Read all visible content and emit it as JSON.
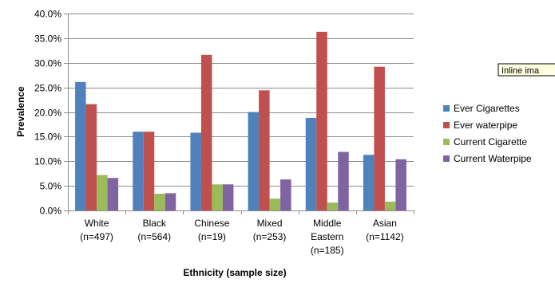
{
  "chart_data": {
    "type": "bar",
    "categories": [
      [
        "White",
        "(n=497)"
      ],
      [
        "Black",
        "(n=564)"
      ],
      [
        "Chinese",
        "(n=19)"
      ],
      [
        "Mixed",
        "(n=253)"
      ],
      [
        "Middle",
        "Eastern",
        "(n=185)"
      ],
      [
        "Asian",
        "(n=1142)"
      ]
    ],
    "series": [
      {
        "name": "Ever Cigarettes",
        "color": "#4f81bd",
        "values": [
          26.1,
          16.0,
          15.8,
          20.0,
          18.8,
          11.3
        ]
      },
      {
        "name": "Ever waterpipe",
        "color": "#c0504d",
        "values": [
          21.6,
          16.0,
          31.6,
          24.4,
          36.3,
          29.2
        ]
      },
      {
        "name": "Current Cigarette",
        "color": "#9bbb59",
        "values": [
          7.2,
          3.4,
          5.3,
          2.4,
          1.6,
          1.8
        ]
      },
      {
        "name": "Current Waterpipe",
        "color": "#8064a2",
        "values": [
          6.6,
          3.5,
          5.3,
          6.3,
          11.9,
          10.4
        ]
      }
    ],
    "ylim": [
      0,
      40
    ],
    "yticks": [
      "0.0%",
      "5.0%",
      "10.0%",
      "15.0%",
      "20.0%",
      "25.0%",
      "30.0%",
      "35.0%",
      "40.0%"
    ],
    "title": "",
    "xlabel": "Ethnicity (sample size)",
    "ylabel": "Prevalence",
    "grid": true,
    "legend": "right"
  },
  "tooltip": "Inline ima"
}
